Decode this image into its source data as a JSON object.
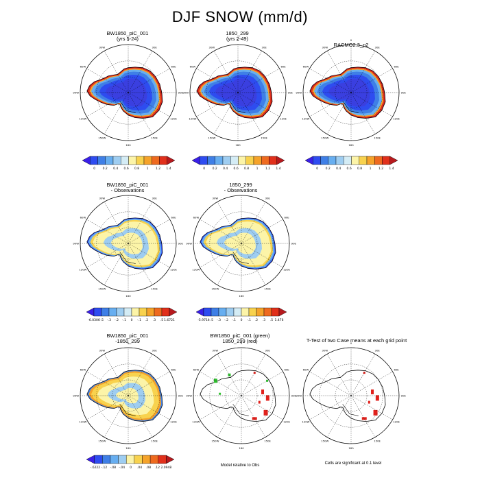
{
  "title": "DJF SNOW (mm/d)",
  "colorbars": {
    "snow": {
      "colors": [
        "#3a1fe8",
        "#2e4cf0",
        "#3f7fe6",
        "#67aef0",
        "#9ecdf1",
        "#d4ecf5",
        "#fcf4a8",
        "#f8d24e",
        "#f5a32a",
        "#ee6a1f",
        "#e1301b",
        "#b71a1e"
      ],
      "labels": [
        "0",
        "0.2",
        "0.4",
        "0.6",
        "0.8",
        "1",
        "1.2",
        "1.4"
      ]
    },
    "diff1": {
      "colors": [
        "#3a1fe8",
        "#2e4cf0",
        "#3f7fe6",
        "#67aef0",
        "#9ecdf1",
        "#d4ecf5",
        "#fcf4a8",
        "#f8d24e",
        "#f5a32a",
        "#ee6a1f",
        "#e1301b",
        "#b71a1e"
      ],
      "labels": [
        "-6.0306",
        "-.5",
        "-.3",
        "-.2",
        "-.1",
        "0",
        "-.1",
        ".2",
        ".3",
        ".5",
        "1.6721"
      ]
    },
    "diff2": {
      "colors": [
        "#3a1fe8",
        "#2e4cf0",
        "#3f7fe6",
        "#67aef0",
        "#9ecdf1",
        "#d4ecf5",
        "#fcf4a8",
        "#f8d24e",
        "#f5a32a",
        "#ee6a1f",
        "#e1301b",
        "#b71a1e"
      ],
      "labels": [
        "-5.9714",
        "-.5",
        "-.3",
        "-.2",
        "-.1",
        "0",
        "-.1",
        ".2",
        ".3",
        ".5",
        "1.476"
      ]
    },
    "case_diff": {
      "colors": [
        "#3a1fe8",
        "#2e4cf0",
        "#3f7fe6",
        "#67aef0",
        "#9ecdf1",
        "#fcf4a8",
        "#f8d24e",
        "#f5a32a",
        "#ee6a1f",
        "#e1301b",
        "#b71a1e"
      ],
      "labels": [
        "-.6222",
        "-.12",
        "-.08",
        "-.04",
        "0",
        ".04",
        ".08",
        ".12",
        "2.0948"
      ]
    }
  },
  "chart_data": [
    {
      "type": "heatmap",
      "title": "BW1850_piC_001",
      "subtitle": "(yrs 5-24)",
      "colorbar": "snow",
      "field": "snow_model"
    },
    {
      "type": "heatmap",
      "title": "1850_299",
      "subtitle": "(yrs 2-49)",
      "colorbar": "snow",
      "field": "snow_model"
    },
    {
      "type": "heatmap",
      "title": "RACMO2.3_p2",
      "subtitle": "",
      "colorbar": "snow",
      "field": "snow_obs"
    },
    {
      "type": "heatmap",
      "title": "BW1850_piC_001",
      "subtitle": "- Observations",
      "colorbar": "diff1",
      "field": "diff_obs"
    },
    {
      "type": "heatmap",
      "title": "1850_299",
      "subtitle": "- Observations",
      "colorbar": "diff2",
      "field": "diff_obs"
    },
    {
      "type": "heatmap",
      "title": "BW1850_piC_001",
      "subtitle": "-1850_299",
      "colorbar": "case_diff",
      "field": "case_diff"
    },
    {
      "type": "scatter",
      "title": "BW1850_piC_001 (green)",
      "subtitle": "1850_299 (red)",
      "footnote": "Model relative to Obs",
      "field": "sig_green_red"
    },
    {
      "type": "scatter",
      "title": "T-Test of two Case means at each grid point",
      "subtitle": "",
      "footnote": "Cells are significant at 0.1 level",
      "field": "sig_red"
    }
  ],
  "map_labels": {
    "top": "0",
    "bottom": "180",
    "left": "90W",
    "right": "90E",
    "upper_left": "30W",
    "upper_right": "30E",
    "mid_upper_left": "60W",
    "mid_upper_right": "60E",
    "mid_lower_left": "120W",
    "mid_lower_right": "120E",
    "lower_left": "150W",
    "lower_right": "150E"
  }
}
